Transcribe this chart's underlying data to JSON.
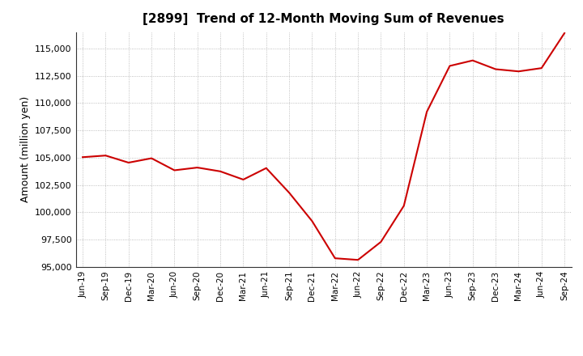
{
  "title": "[2899]  Trend of 12-Month Moving Sum of Revenues",
  "ylabel": "Amount (million yen)",
  "line_color": "#cc0000",
  "background_color": "#ffffff",
  "plot_bg_color": "#ffffff",
  "grid_color": "#999999",
  "ylim": [
    95000,
    116500
  ],
  "yticks": [
    95000,
    97500,
    100000,
    102500,
    105000,
    107500,
    110000,
    112500,
    115000
  ],
  "x_labels": [
    "Jun-19",
    "Sep-19",
    "Dec-19",
    "Mar-20",
    "Jun-20",
    "Sep-20",
    "Dec-20",
    "Mar-21",
    "Jun-21",
    "Sep-21",
    "Dec-21",
    "Mar-22",
    "Jun-22",
    "Sep-22",
    "Dec-22",
    "Mar-23",
    "Jun-23",
    "Sep-23",
    "Dec-23",
    "Mar-24",
    "Jun-24",
    "Sep-24"
  ],
  "values": [
    105050,
    105200,
    104550,
    104950,
    103850,
    104100,
    103750,
    103000,
    104050,
    101800,
    99200,
    95800,
    95650,
    97300,
    100600,
    109200,
    113400,
    113900,
    113100,
    112900,
    113200,
    116400
  ]
}
